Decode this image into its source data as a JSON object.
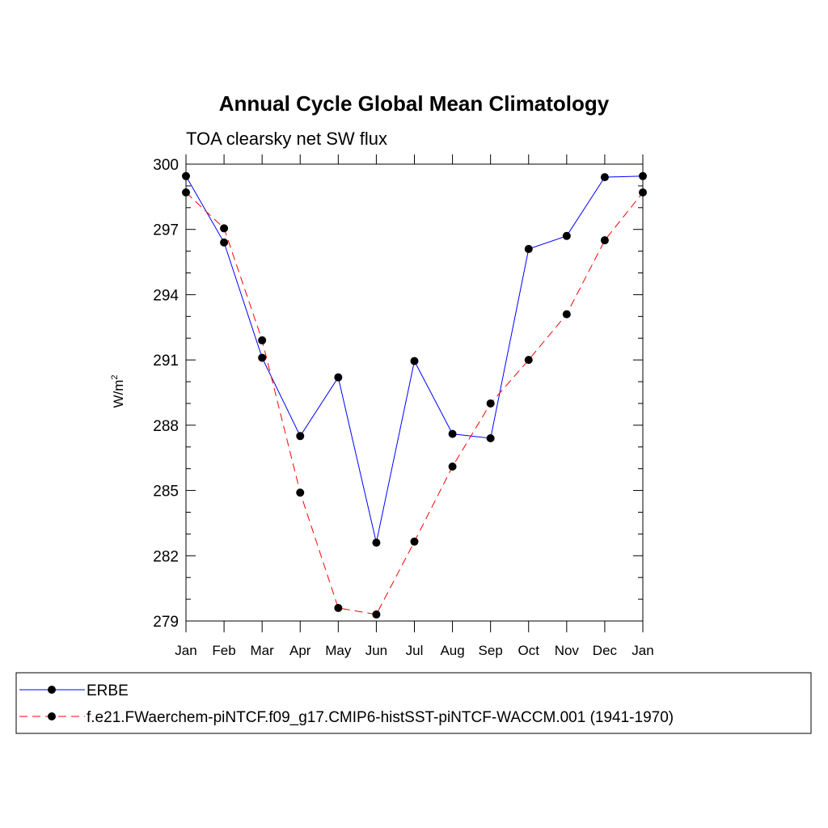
{
  "chart_data": {
    "type": "line",
    "title": "Annual Cycle Global Mean Climatology",
    "subtitle": "TOA clearsky net SW flux",
    "ylabel": "W/m",
    "ylabel_superscript": "2",
    "xlabel": "",
    "categories": [
      "Jan",
      "Feb",
      "Mar",
      "Apr",
      "May",
      "Jun",
      "Jul",
      "Aug",
      "Sep",
      "Oct",
      "Nov",
      "Dec",
      "Jan"
    ],
    "yticks": [
      "279",
      "282",
      "285",
      "288",
      "291",
      "294",
      "297",
      "300"
    ],
    "ylim": [
      279,
      300
    ],
    "grid": false,
    "legend_position": "bottom",
    "series": [
      {
        "name": "ERBE",
        "color": "#0000ff",
        "style": "solid",
        "values": [
          299.45,
          296.4,
          291.1,
          287.5,
          290.2,
          282.6,
          290.95,
          287.6,
          287.4,
          296.1,
          296.7,
          299.4,
          299.45
        ]
      },
      {
        "name": "f.e21.FWaerchem-piNTCF.f09_g17.CMIP6-histSST-piNTCF-WACCM.001 (1941-1970)",
        "color": "#ff0000",
        "style": "dashed",
        "values": [
          298.7,
          297.05,
          291.9,
          284.9,
          279.6,
          279.3,
          282.65,
          286.1,
          289.0,
          291.0,
          293.1,
          296.5,
          298.7
        ]
      }
    ]
  }
}
